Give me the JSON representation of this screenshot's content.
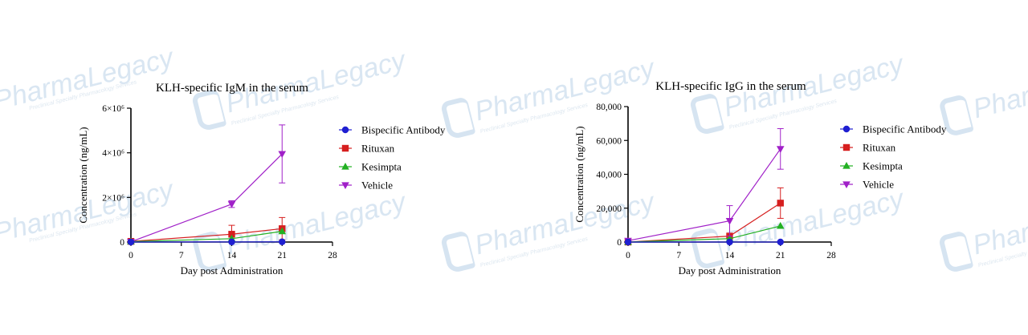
{
  "watermark": {
    "brand": "PharmaLegacy",
    "tagline": "Preclinical Specialty Pharmacology Services"
  },
  "chart_data": [
    {
      "type": "line",
      "title": "KLH-specific IgM in the serum",
      "xlabel": "Day post Administration",
      "ylabel": "Concentration (ng/mL)",
      "x": [
        0,
        14,
        21
      ],
      "xticks": [
        0,
        7,
        14,
        21,
        28
      ],
      "xlim": [
        0,
        28
      ],
      "ylim": [
        0,
        6000000
      ],
      "yticks": [
        0,
        2000000,
        4000000,
        6000000
      ],
      "ytick_labels": [
        "0",
        "2×10⁶",
        "4×10⁶",
        "6×10⁶"
      ],
      "legend_position": "right",
      "series": [
        {
          "name": "Bispecific Antibody",
          "values": [
            0,
            5000,
            10000
          ],
          "err": [
            0,
            0,
            0
          ],
          "color": "#1f1fd1",
          "marker": "circle"
        },
        {
          "name": "Rituxan",
          "values": [
            30000,
            350000,
            600000
          ],
          "err": [
            0,
            400000,
            500000
          ],
          "color": "#d61f1f",
          "marker": "square"
        },
        {
          "name": "Kesimpta",
          "values": [
            20000,
            150000,
            480000
          ],
          "err": [
            0,
            0,
            0
          ],
          "color": "#22b022",
          "marker": "triangle-up"
        },
        {
          "name": "Vehicle",
          "values": [
            10000,
            1700000,
            3950000
          ],
          "err": [
            0,
            150000,
            1300000
          ],
          "color": "#a020c8",
          "marker": "triangle-down"
        }
      ]
    },
    {
      "type": "line",
      "title": "KLH-specific IgG in the serum",
      "xlabel": "Day post Administration",
      "ylabel": "Concentration (ng/mL)",
      "x": [
        0,
        14,
        21
      ],
      "xticks": [
        0,
        7,
        14,
        21,
        28
      ],
      "xlim": [
        0,
        28
      ],
      "ylim": [
        0,
        80000
      ],
      "yticks": [
        0,
        20000,
        40000,
        60000,
        80000
      ],
      "ytick_labels": [
        "0",
        "20,000",
        "40,000",
        "60,000",
        "80,000"
      ],
      "legend_position": "right",
      "series": [
        {
          "name": "Bispecific Antibody",
          "values": [
            0,
            0,
            0
          ],
          "err": [
            0,
            0,
            0
          ],
          "color": "#1f1fd1",
          "marker": "circle"
        },
        {
          "name": "Rituxan",
          "values": [
            0,
            3500,
            23000
          ],
          "err": [
            0,
            1500,
            9000
          ],
          "color": "#d61f1f",
          "marker": "square"
        },
        {
          "name": "Kesimpta",
          "values": [
            0,
            2000,
            9500
          ],
          "err": [
            0,
            0,
            0
          ],
          "color": "#22b022",
          "marker": "triangle-up"
        },
        {
          "name": "Vehicle",
          "values": [
            800,
            12500,
            55000
          ],
          "err": [
            0,
            9000,
            12000
          ],
          "color": "#a020c8",
          "marker": "triangle-down"
        }
      ]
    }
  ]
}
